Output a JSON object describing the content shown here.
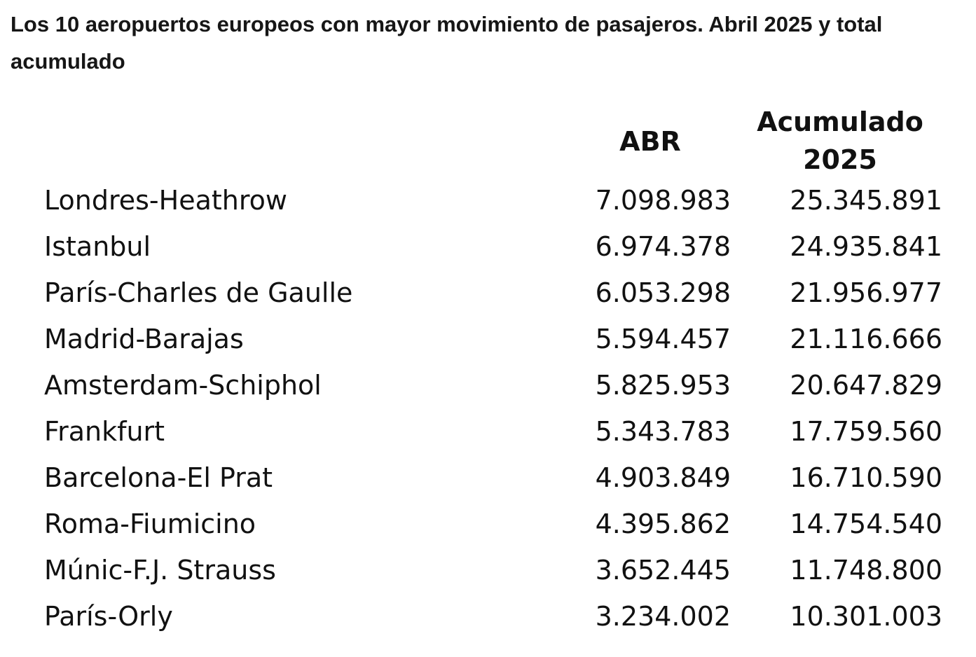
{
  "title": "Los 10 aeropuertos europeos con mayor movimiento de pasajeros. Abril 2025 y total acumulado",
  "table": {
    "headers": {
      "airport": "",
      "abr": "ABR",
      "accumulated_line1": "Acumulado",
      "accumulated_line2": "2025"
    },
    "rows": [
      {
        "airport": "Londres-Heathrow",
        "abr": "7.098.983",
        "accumulated": "25.345.891"
      },
      {
        "airport": "Istanbul",
        "abr": "6.974.378",
        "accumulated": "24.935.841"
      },
      {
        "airport": "París-Charles de Gaulle",
        "abr": "6.053.298",
        "accumulated": "21.956.977"
      },
      {
        "airport": "Madrid-Barajas",
        "abr": "5.594.457",
        "accumulated": "21.116.666"
      },
      {
        "airport": "Amsterdam-Schiphol",
        "abr": "5.825.953",
        "accumulated": "20.647.829"
      },
      {
        "airport": "Frankfurt",
        "abr": "5.343.783",
        "accumulated": "17.759.560"
      },
      {
        "airport": "Barcelona-El Prat",
        "abr": "4.903.849",
        "accumulated": "16.710.590"
      },
      {
        "airport": "Roma-Fiumicino",
        "abr": "4.395.862",
        "accumulated": "14.754.540"
      },
      {
        "airport": "Múnic-F.J. Strauss",
        "abr": "3.652.445",
        "accumulated": "11.748.800"
      },
      {
        "airport": "París-Orly",
        "abr": "3.234.002",
        "accumulated": "10.301.003"
      }
    ]
  }
}
